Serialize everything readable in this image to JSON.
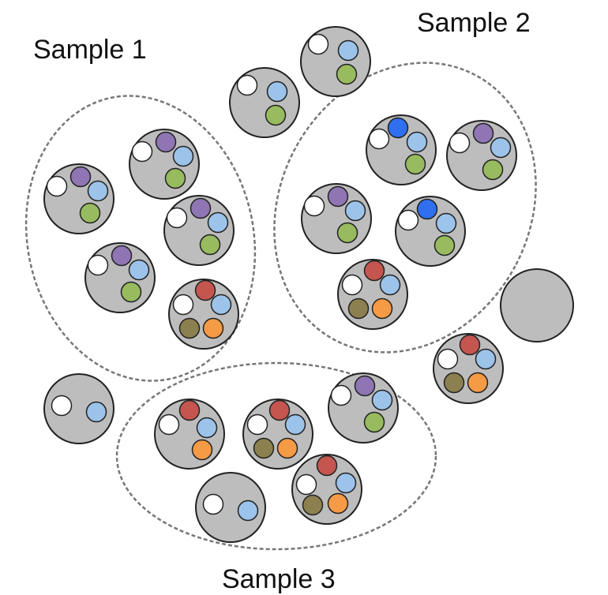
{
  "labels": {
    "sample1": "Sample 1",
    "sample2": "Sample 2",
    "sample3": "Sample 3"
  },
  "colors": {
    "cell": "#bdbdbd",
    "cell_stroke": "#222222",
    "white": "#ffffff",
    "light_blue": "#9cc3ea",
    "green": "#97bb5e",
    "purple": "#8f75b3",
    "blue": "#2f6ff0",
    "red": "#c4554f",
    "olive": "#8c8050",
    "orange": "#f59a45",
    "ellipse_stroke": "#777777"
  }
}
